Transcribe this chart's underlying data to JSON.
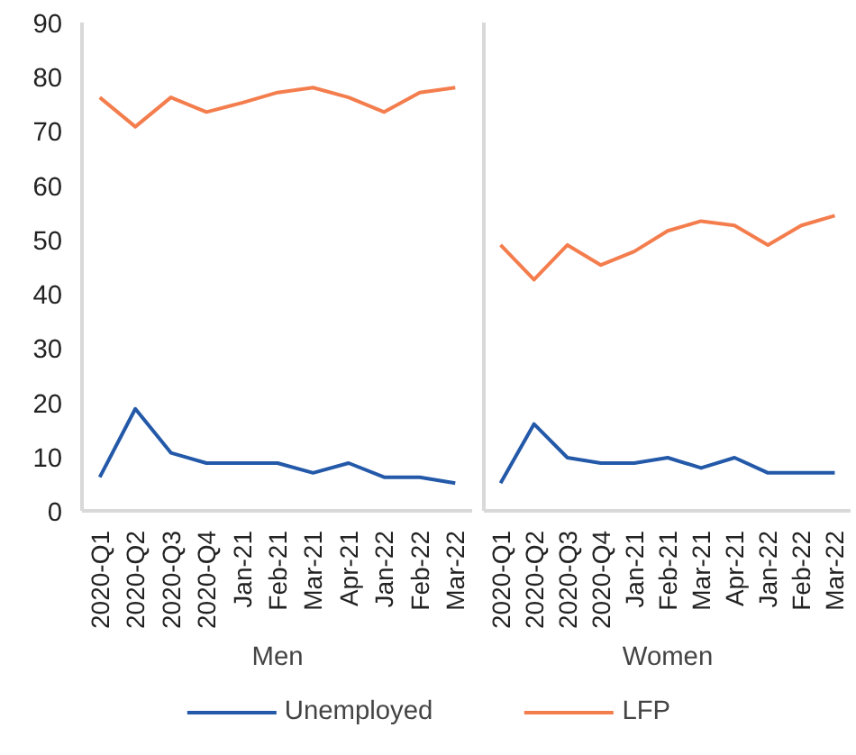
{
  "chart_data": [
    {
      "type": "line",
      "xlabel": "Men",
      "categories": [
        "2020-Q1",
        "2020-Q2",
        "2020-Q3",
        "2020-Q4",
        "Jan-21",
        "Feb-21",
        "Mar-21",
        "Apr-21",
        "Jan-22",
        "Feb-22",
        "Mar-22"
      ],
      "ylim": [
        0,
        90
      ],
      "yticks": [
        0,
        10,
        20,
        30,
        40,
        50,
        60,
        70,
        80,
        90
      ],
      "legend": "bottom",
      "series": [
        {
          "name": "Unemployed",
          "color": "#2359a8",
          "values": [
            6.2,
            18.8,
            10.7,
            8.8,
            8.8,
            8.8,
            7.0,
            8.8,
            6.2,
            6.2,
            5.1
          ]
        },
        {
          "name": "LFP",
          "color": "#f47d4d",
          "values": [
            76.2,
            70.8,
            76.2,
            73.5,
            75.2,
            77.1,
            78.0,
            76.2,
            73.5,
            77.1,
            78.0
          ]
        }
      ]
    },
    {
      "type": "line",
      "xlabel": "Women",
      "categories": [
        "2020-Q1",
        "2020-Q2",
        "2020-Q3",
        "2020-Q4",
        "Jan-21",
        "Feb-21",
        "Mar-21",
        "Apr-21",
        "Jan-22",
        "Feb-22",
        "Mar-22"
      ],
      "ylim": [
        0,
        90
      ],
      "tick_labels": "x",
      "series": [
        {
          "color": "#2359a8",
          "values": [
            5.1,
            16.0,
            9.8,
            8.8,
            8.8,
            9.8,
            7.9,
            9.8,
            7.0,
            7.0,
            7.0
          ]
        },
        {
          "color": "#f47d4d",
          "values": [
            49.0,
            42.6,
            49.0,
            45.3,
            47.8,
            51.6,
            53.4,
            52.6,
            49.0,
            52.6,
            54.4
          ]
        }
      ]
    }
  ]
}
